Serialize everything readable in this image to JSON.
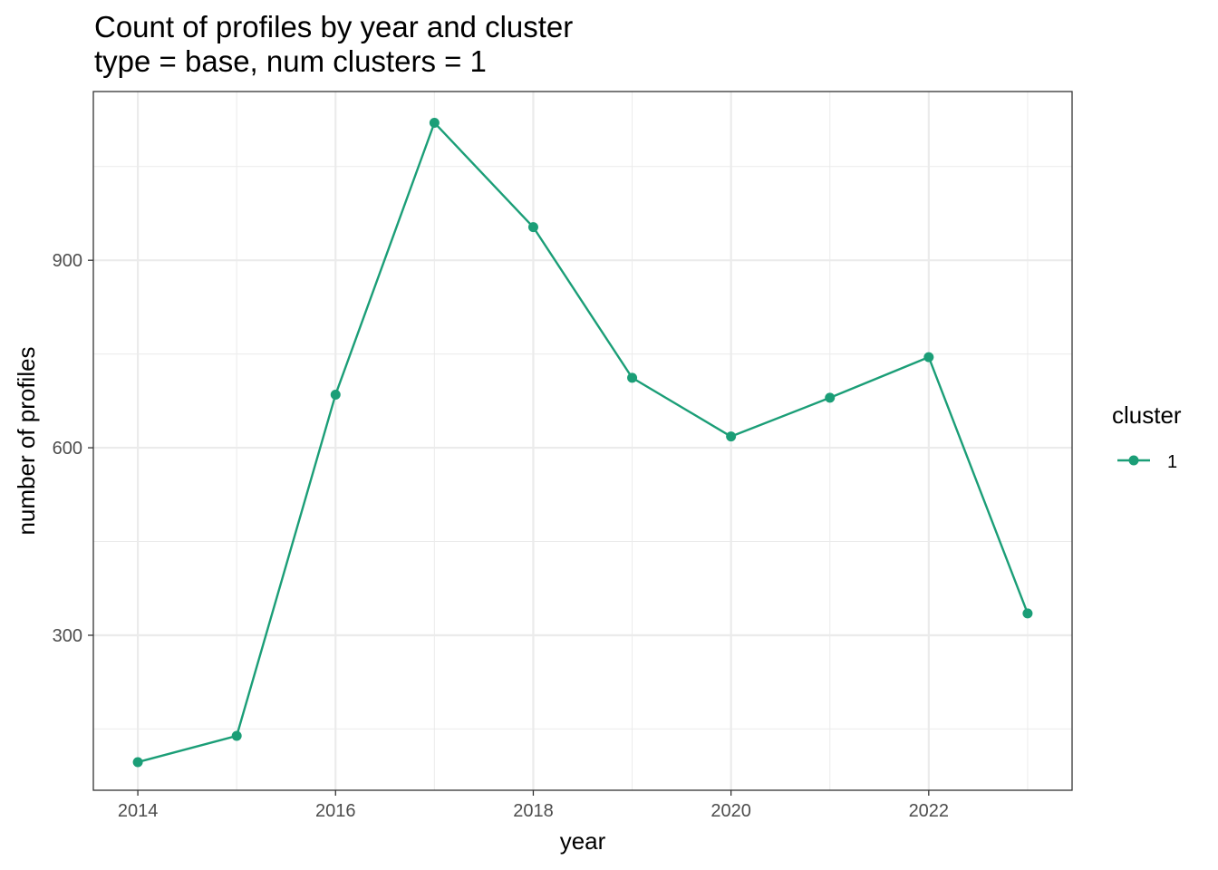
{
  "chart_data": {
    "type": "line",
    "title": "Count of profiles by year and cluster",
    "subtitle": "type = base, num clusters = 1",
    "xlabel": "year",
    "ylabel": "number of profiles",
    "x": [
      2014,
      2015,
      2016,
      2017,
      2018,
      2019,
      2020,
      2021,
      2022,
      2023
    ],
    "series": [
      {
        "name": "1",
        "color": "#1b9e77",
        "values": [
          97,
          139,
          685,
          1120,
          953,
          712,
          618,
          680,
          745,
          335
        ]
      }
    ],
    "xlim": [
      2013.55,
      2023.45
    ],
    "ylim": [
      52,
      1170
    ],
    "x_ticks": [
      2014,
      2016,
      2018,
      2020,
      2022
    ],
    "y_ticks": [
      300,
      600,
      900
    ],
    "grid": true,
    "legend": {
      "title": "cluster",
      "position": "right"
    }
  }
}
